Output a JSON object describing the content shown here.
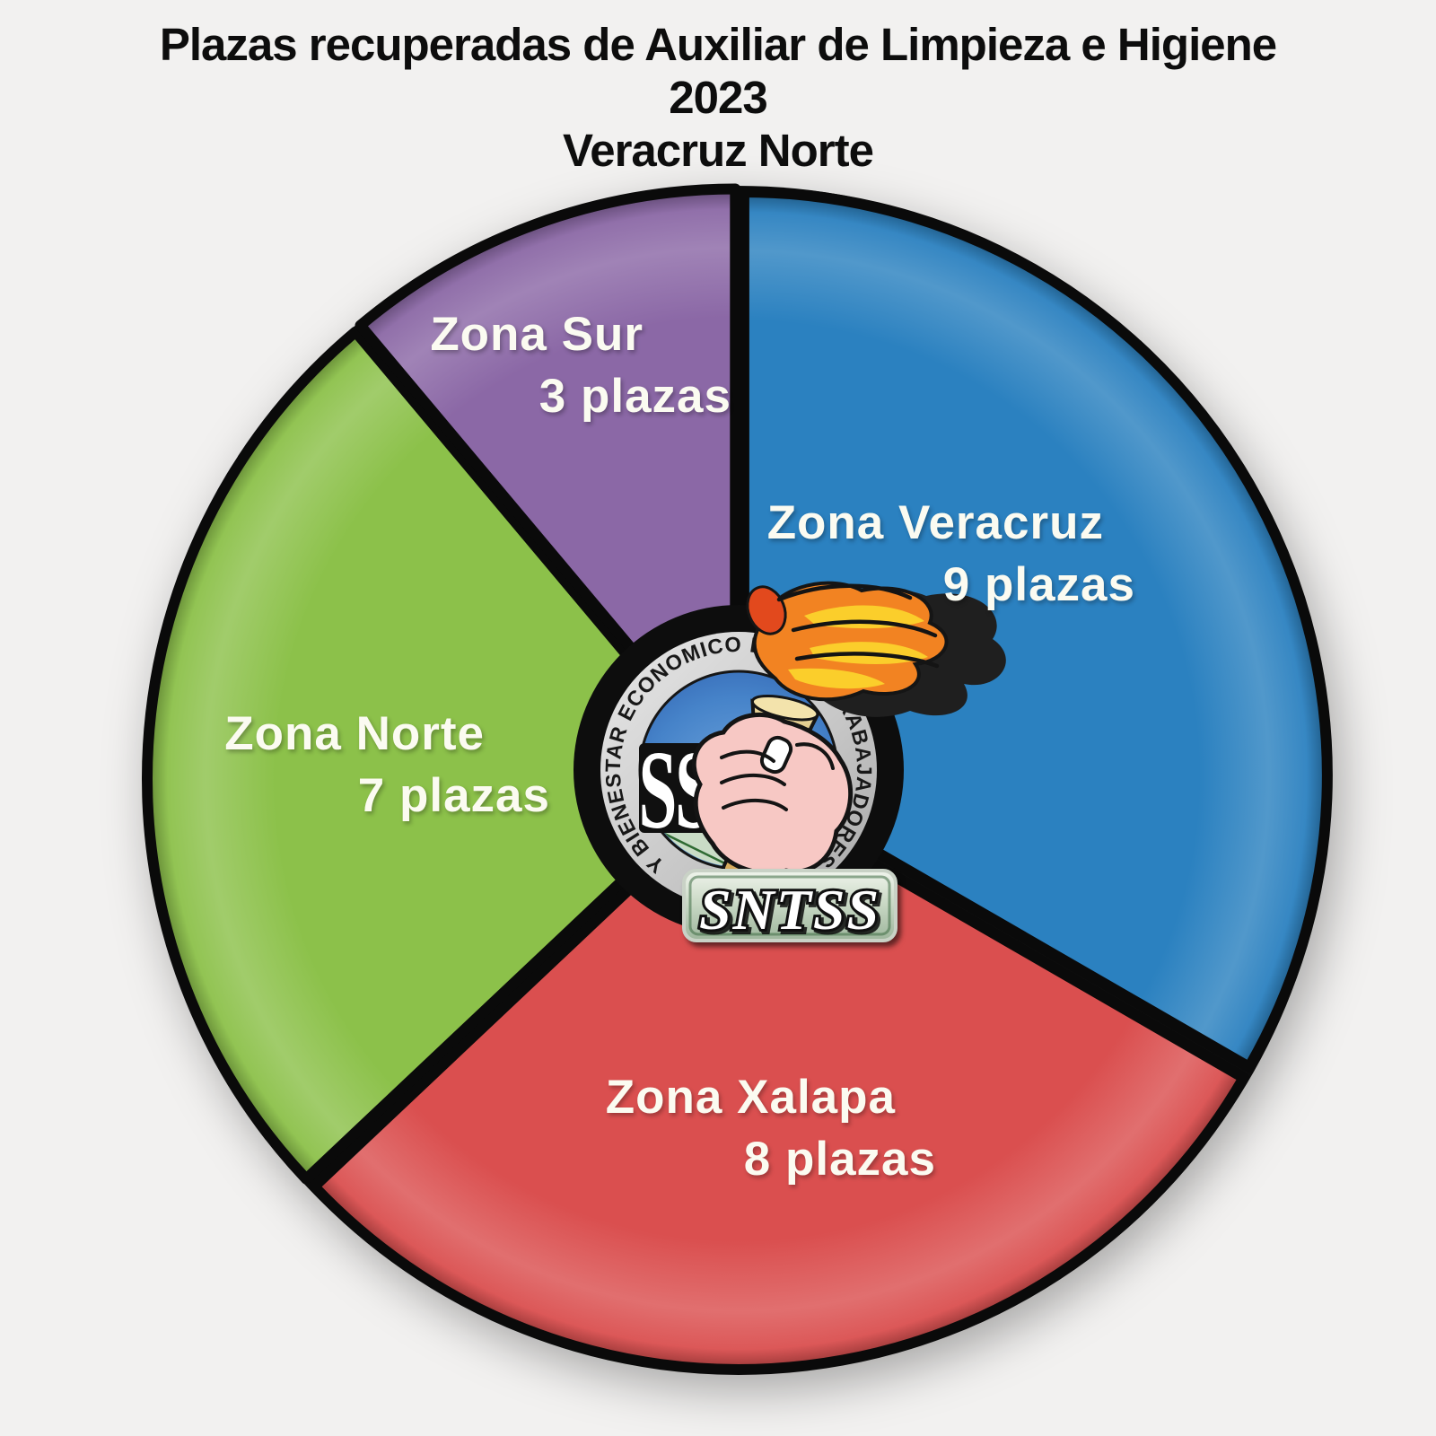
{
  "page": {
    "background_color": "#F2F1F0"
  },
  "title": {
    "line1": "Plazas recuperadas de Auxiliar de Limpieza e Higiene",
    "line2": "2023",
    "line3": "Veracruz Norte",
    "color": "#0D0D0D"
  },
  "chart_data": {
    "type": "pie",
    "title": "Plazas recuperadas de Auxiliar de Limpieza e Higiene 2023 Veracruz Norte",
    "unit": "plazas",
    "total": 27,
    "start_angle_deg": 0,
    "direction": "clockwise",
    "legend_position": "labels-on-slices",
    "slices": [
      {
        "name": "Zona Veracruz",
        "value": 9,
        "value_label": "9 plazas",
        "color": "#2B81C0"
      },
      {
        "name": "Zona Xalapa",
        "value": 8,
        "value_label": "8 plazas",
        "color": "#DA4F4F"
      },
      {
        "name": "Zona Norte",
        "value": 7,
        "value_label": "7 plazas",
        "color": "#8CC14A"
      },
      {
        "name": "Zona Sur",
        "value": 3,
        "value_label": "3 plazas",
        "color": "#8B68A6"
      }
    ],
    "label_text_color": "#FBFBF1",
    "center_logo": {
      "organization": "SNTSS",
      "monogram": "SS",
      "ring_text": "Y BIENESTAR ECONOMICO DE LOS TRABAJADORES"
    }
  }
}
